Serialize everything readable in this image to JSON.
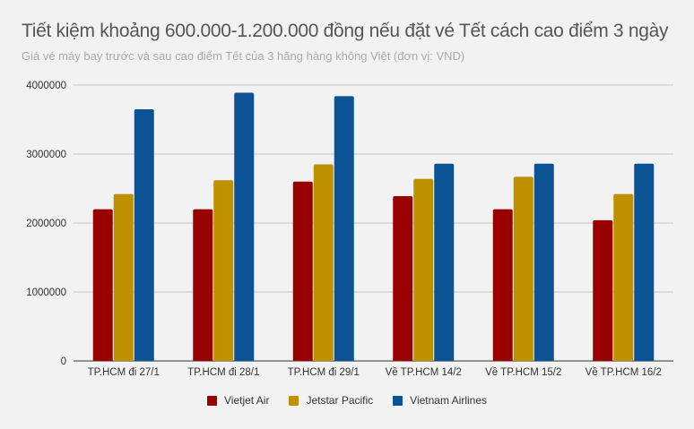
{
  "chart_data": {
    "type": "bar",
    "title": "Tiết kiệm khoảng 600.000-1.200.000 đồng nếu đặt vé Tết cách cao điểm 3 ngày",
    "subtitle": "Giá vé máy bay trước và sau cao điểm Tết của 3 hãng hàng không Việt (đơn vị: VND)",
    "categories": [
      "TP.HCM đi 27/1",
      "TP.HCM đi 28/1",
      "TP.HCM đi 29/1",
      "Về TP.HCM 14/2",
      "Về TP.HCM 15/2",
      "Về TP.HCM 16/2"
    ],
    "series": [
      {
        "name": "Vietjet Air",
        "color": "#990000",
        "values": [
          2200000,
          2200000,
          2600000,
          2390000,
          2200000,
          2040000
        ]
      },
      {
        "name": "Jetstar Pacific",
        "color": "#bf9000",
        "values": [
          2420000,
          2620000,
          2850000,
          2640000,
          2670000,
          2420000
        ]
      },
      {
        "name": "Vietnam Airlines",
        "color": "#0b5394",
        "values": [
          3650000,
          3890000,
          3840000,
          2860000,
          2860000,
          2860000
        ]
      }
    ],
    "yticks": [
      "0",
      "1000000",
      "2000000",
      "3000000",
      "4000000"
    ],
    "ylim": [
      0,
      4000000
    ],
    "grid": true,
    "legend": "bottom"
  }
}
